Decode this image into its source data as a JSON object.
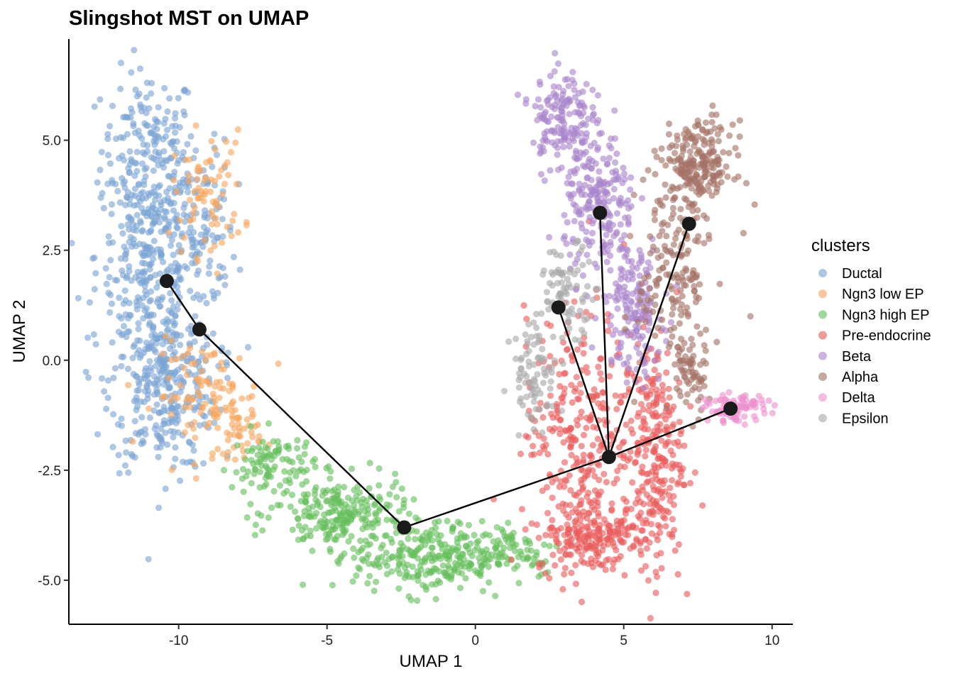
{
  "chart_data": {
    "type": "scatter",
    "title": "Slingshot MST on UMAP",
    "xlabel": "UMAP 1",
    "ylabel": "UMAP 2",
    "xlim": [
      -13.7,
      10.7
    ],
    "ylim": [
      -6.0,
      7.3
    ],
    "x_ticks": [
      -10,
      -5,
      0,
      5,
      10
    ],
    "x_tick_labels": [
      "-10",
      "-5",
      "0",
      "5",
      "10"
    ],
    "y_ticks": [
      -5.0,
      -2.5,
      0.0,
      2.5,
      5.0
    ],
    "y_tick_labels": [
      "-5.0",
      "-2.5",
      "0.0",
      "2.5",
      "5.0"
    ],
    "grid": false,
    "legend": {
      "title": "clusters",
      "position": "right",
      "entries": [
        "Ductal",
        "Ngn3 low EP",
        "Ngn3 high EP",
        "Pre-endocrine",
        "Beta",
        "Alpha",
        "Delta",
        "Epsilon"
      ]
    },
    "series": [
      {
        "name": "Ductal",
        "color": "#7BA4D4",
        "approx_points": 900,
        "regions": [
          {
            "cx": -11.0,
            "cy": 4.8,
            "sx": 0.8,
            "sy": 0.9,
            "w": 0.18
          },
          {
            "cx": -11.0,
            "cy": 2.4,
            "sx": 0.9,
            "sy": 1.1,
            "w": 0.32
          },
          {
            "cx": -10.5,
            "cy": -0.5,
            "sx": 0.9,
            "sy": 1.0,
            "w": 0.38
          },
          {
            "cx": -9.3,
            "cy": 3.0,
            "sx": 0.6,
            "sy": 1.0,
            "w": 0.12
          }
        ]
      },
      {
        "name": "Ngn3 low EP",
        "color": "#F9A75D",
        "approx_points": 220,
        "regions": [
          {
            "cx": -9.0,
            "cy": 3.8,
            "sx": 0.6,
            "sy": 0.7,
            "w": 0.35
          },
          {
            "cx": -9.0,
            "cy": -0.8,
            "sx": 0.9,
            "sy": 0.6,
            "w": 0.45
          },
          {
            "cx": -8.0,
            "cy": -1.6,
            "sx": 0.4,
            "sy": 0.3,
            "w": 0.2
          }
        ]
      },
      {
        "name": "Ngn3 high EP",
        "color": "#65BE5C",
        "approx_points": 650,
        "regions": [
          {
            "cx": -6.8,
            "cy": -2.4,
            "sx": 0.7,
            "sy": 0.4,
            "w": 0.15
          },
          {
            "cx": -4.5,
            "cy": -3.5,
            "sx": 1.1,
            "sy": 0.4,
            "w": 0.35
          },
          {
            "cx": -1.5,
            "cy": -4.5,
            "sx": 1.3,
            "sy": 0.4,
            "w": 0.4
          },
          {
            "cx": 1.2,
            "cy": -4.3,
            "sx": 0.9,
            "sy": 0.3,
            "w": 0.1
          }
        ]
      },
      {
        "name": "Pre-endocrine",
        "color": "#EA5C5C",
        "approx_points": 750,
        "regions": [
          {
            "cx": 4.0,
            "cy": -4.0,
            "sx": 1.0,
            "sy": 0.4,
            "w": 0.3
          },
          {
            "cx": 6.0,
            "cy": -2.0,
            "sx": 0.5,
            "sy": 1.3,
            "w": 0.35
          },
          {
            "cx": 3.5,
            "cy": -1.5,
            "sx": 0.9,
            "sy": 1.3,
            "w": 0.35
          }
        ]
      },
      {
        "name": "Beta",
        "color": "#A985CC",
        "approx_points": 520,
        "regions": [
          {
            "cx": 2.9,
            "cy": 5.5,
            "sx": 0.5,
            "sy": 0.6,
            "w": 0.3
          },
          {
            "cx": 4.2,
            "cy": 3.5,
            "sx": 0.6,
            "sy": 0.8,
            "w": 0.4
          },
          {
            "cx": 5.3,
            "cy": 1.2,
            "sx": 0.5,
            "sy": 0.8,
            "w": 0.3
          }
        ]
      },
      {
        "name": "Alpha",
        "color": "#A57265",
        "approx_points": 450,
        "regions": [
          {
            "cx": 7.5,
            "cy": 4.4,
            "sx": 0.6,
            "sy": 0.5,
            "w": 0.5
          },
          {
            "cx": 6.7,
            "cy": 2.0,
            "sx": 0.6,
            "sy": 1.1,
            "w": 0.35
          },
          {
            "cx": 7.2,
            "cy": -0.3,
            "sx": 0.3,
            "sy": 0.5,
            "w": 0.15
          }
        ]
      },
      {
        "name": "Delta",
        "color": "#EE92CF",
        "approx_points": 90,
        "regions": [
          {
            "cx": 8.8,
            "cy": -1.1,
            "sx": 0.5,
            "sy": 0.15,
            "w": 1.0
          }
        ]
      },
      {
        "name": "Epsilon",
        "color": "#A9A9A9",
        "approx_points": 160,
        "regions": [
          {
            "cx": 3.1,
            "cy": 1.6,
            "sx": 0.5,
            "sy": 0.5,
            "w": 0.5
          },
          {
            "cx": 2.0,
            "cy": -0.3,
            "sx": 0.4,
            "sy": 0.6,
            "w": 0.5
          }
        ]
      }
    ],
    "mst_nodes": [
      {
        "x": -10.4,
        "y": 1.8
      },
      {
        "x": -9.3,
        "y": 0.7
      },
      {
        "x": -2.4,
        "y": -3.8
      },
      {
        "x": 4.5,
        "y": -2.2
      },
      {
        "x": 2.8,
        "y": 1.2
      },
      {
        "x": 4.2,
        "y": 3.35
      },
      {
        "x": 7.2,
        "y": 3.1
      },
      {
        "x": 8.6,
        "y": -1.1
      }
    ],
    "mst_edges": [
      [
        0,
        1
      ],
      [
        1,
        2
      ],
      [
        2,
        3
      ],
      [
        3,
        4
      ],
      [
        3,
        5
      ],
      [
        3,
        6
      ],
      [
        3,
        7
      ]
    ]
  }
}
